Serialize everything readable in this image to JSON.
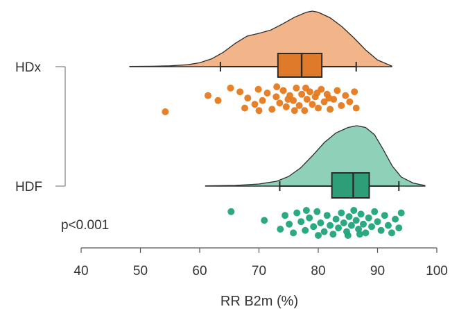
{
  "chart_data": {
    "type": "raincloud",
    "xlabel": "RR B2m (%)",
    "xlim": [
      40,
      100
    ],
    "xticks": [
      40,
      50,
      60,
      70,
      80,
      90,
      100
    ],
    "annotation": "p<0.001",
    "colors": {
      "HDx": {
        "fill": "#f2b58a",
        "box": "#e07a2b",
        "points": "#e67a1e"
      },
      "HDF": {
        "fill": "#8fd0b8",
        "box": "#2e9e78",
        "points": "#20a57a"
      }
    },
    "groups": [
      {
        "name": "HDx",
        "box": {
          "whisker_low": 63.5,
          "q1": 73.2,
          "median": 77.2,
          "q3": 80.6,
          "whisker_high": 86.4
        },
        "density_range": [
          48.2,
          92.4
        ],
        "density": [
          [
            48.2,
            0.004
          ],
          [
            52,
            0.008
          ],
          [
            55,
            0.015
          ],
          [
            58,
            0.035
          ],
          [
            60,
            0.07
          ],
          [
            62,
            0.14
          ],
          [
            64,
            0.26
          ],
          [
            66,
            0.42
          ],
          [
            68,
            0.55
          ],
          [
            70,
            0.6
          ],
          [
            72,
            0.66
          ],
          [
            74,
            0.77
          ],
          [
            76,
            0.89
          ],
          [
            78,
            0.98
          ],
          [
            79,
            1.0
          ],
          [
            80,
            0.98
          ],
          [
            82,
            0.88
          ],
          [
            84,
            0.72
          ],
          [
            86,
            0.52
          ],
          [
            88,
            0.3
          ],
          [
            90,
            0.12
          ],
          [
            92.4,
            0.01
          ]
        ],
        "points": [
          [
            54.2,
            1
          ],
          [
            61.4,
            0.35
          ],
          [
            63.1,
            0.55
          ],
          [
            65.2,
            0.05
          ],
          [
            66.8,
            0.2
          ],
          [
            67.6,
            0.85
          ],
          [
            68.1,
            0.45
          ],
          [
            69.3,
            0.7
          ],
          [
            69.9,
            0.1
          ],
          [
            70.6,
            0.55
          ],
          [
            71.4,
            0.25
          ],
          [
            72.2,
            0.9
          ],
          [
            72.9,
            0.4
          ],
          [
            73.5,
            0.65
          ],
          [
            74.1,
            0.15
          ],
          [
            74.6,
            0.8
          ],
          [
            75.2,
            0.35
          ],
          [
            75.8,
            0.55
          ],
          [
            76.3,
            0.05
          ],
          [
            76.8,
            0.75
          ],
          [
            77.2,
            0.3
          ],
          [
            77.7,
            0.95
          ],
          [
            78.1,
            0.5
          ],
          [
            78.6,
            0.2
          ],
          [
            79.0,
            0.7
          ],
          [
            79.5,
            0.4
          ],
          [
            80.0,
            0.85
          ],
          [
            80.5,
            0.1
          ],
          [
            81.0,
            0.6
          ],
          [
            81.5,
            0.3
          ],
          [
            82.0,
            0.9
          ],
          [
            82.6,
            0.5
          ],
          [
            83.2,
            0.15
          ],
          [
            83.9,
            0.75
          ],
          [
            84.6,
            0.35
          ],
          [
            85.3,
            0.6
          ],
          [
            86.1,
            0.2
          ],
          [
            86.4,
            0.85
          ],
          [
            74.9,
            0.5
          ],
          [
            76.0,
            0.95
          ],
          [
            77.9,
            0.05
          ],
          [
            79.8,
            0.25
          ],
          [
            81.8,
            0.45
          ],
          [
            73.0,
            0.0
          ],
          [
            70.0,
            0.95
          ]
        ]
      },
      {
        "name": "HDF",
        "box": {
          "whisker_low": 73.5,
          "q1": 82.3,
          "median": 85.9,
          "q3": 88.6,
          "whisker_high": 93.6
        },
        "density_range": [
          61.0,
          98.0
        ],
        "density": [
          [
            61,
            0.003
          ],
          [
            66,
            0.012
          ],
          [
            70,
            0.035
          ],
          [
            73,
            0.08
          ],
          [
            75,
            0.16
          ],
          [
            77,
            0.3
          ],
          [
            79,
            0.5
          ],
          [
            81,
            0.72
          ],
          [
            83,
            0.88
          ],
          [
            85,
            0.97
          ],
          [
            86.5,
            1.0
          ],
          [
            88,
            0.97
          ],
          [
            89.5,
            0.85
          ],
          [
            91,
            0.6
          ],
          [
            92.5,
            0.33
          ],
          [
            94,
            0.15
          ],
          [
            96,
            0.05
          ],
          [
            98,
            0.01
          ]
        ],
        "points": [
          [
            65.3,
            0.05
          ],
          [
            70.9,
            0.4
          ],
          [
            73.6,
            0.75
          ],
          [
            74.4,
            0.2
          ],
          [
            75.1,
            0.55
          ],
          [
            75.8,
            0.9
          ],
          [
            76.4,
            0.1
          ],
          [
            77.1,
            0.45
          ],
          [
            77.8,
            0.8
          ],
          [
            78.5,
            0.3
          ],
          [
            79.2,
            0.65
          ],
          [
            79.8,
            0.05
          ],
          [
            80.4,
            0.5
          ],
          [
            81.0,
            0.85
          ],
          [
            81.5,
            0.2
          ],
          [
            82.0,
            0.6
          ],
          [
            82.5,
            0.95
          ],
          [
            83.0,
            0.35
          ],
          [
            83.4,
            0.7
          ],
          [
            83.9,
            0.1
          ],
          [
            84.3,
            0.5
          ],
          [
            84.8,
            0.85
          ],
          [
            85.2,
            0.25
          ],
          [
            85.6,
            0.6
          ],
          [
            86.0,
            0.0
          ],
          [
            86.4,
            0.4
          ],
          [
            86.8,
            0.75
          ],
          [
            87.2,
            0.15
          ],
          [
            87.6,
            0.55
          ],
          [
            88.0,
            0.9
          ],
          [
            88.5,
            0.3
          ],
          [
            89.0,
            0.65
          ],
          [
            89.5,
            0.05
          ],
          [
            90.0,
            0.45
          ],
          [
            90.6,
            0.8
          ],
          [
            91.2,
            0.2
          ],
          [
            91.8,
            0.6
          ],
          [
            92.4,
            0.9
          ],
          [
            93.0,
            0.35
          ],
          [
            93.6,
            0.7
          ],
          [
            94.0,
            0.1
          ],
          [
            78.0,
            0.0
          ],
          [
            80.0,
            1.0
          ],
          [
            85.0,
            1.0
          ],
          [
            87.0,
            0.95
          ]
        ]
      }
    ]
  }
}
